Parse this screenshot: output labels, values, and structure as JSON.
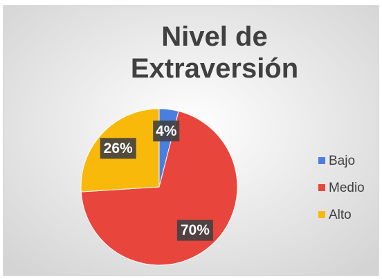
{
  "chart_data": {
    "type": "pie",
    "title": "Nivel de Extraversión",
    "categories": [
      "Bajo",
      "Medio",
      "Alto"
    ],
    "values": [
      4,
      70,
      26
    ],
    "value_labels": [
      "4%",
      "70%",
      "26%"
    ],
    "colors": [
      "#4a7fe0",
      "#e8453c",
      "#f9b90a"
    ],
    "legend": "right"
  }
}
